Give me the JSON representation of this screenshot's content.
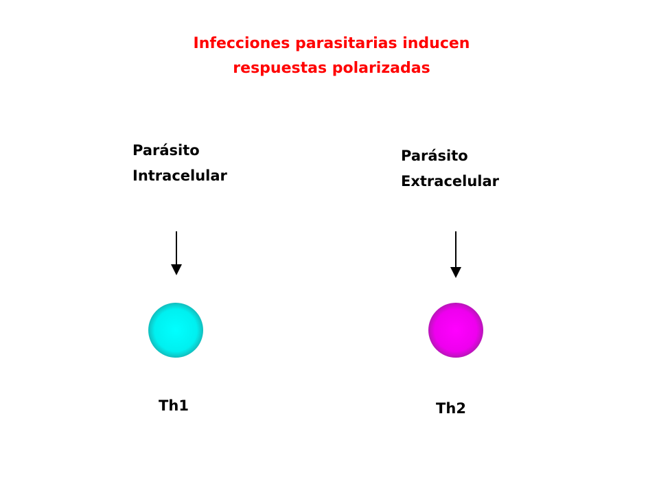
{
  "title": {
    "lines": [
      "Infecciones parasitarias inducen",
      "respuestas polarizadas"
    ]
  },
  "nodes": [
    {
      "label_lines": [
        "Parásito",
        "Intracelular"
      ],
      "cell": "Th1"
    },
    {
      "label_lines": [
        "Parásito",
        "Extracelular"
      ],
      "cell": "Th2"
    }
  ]
}
